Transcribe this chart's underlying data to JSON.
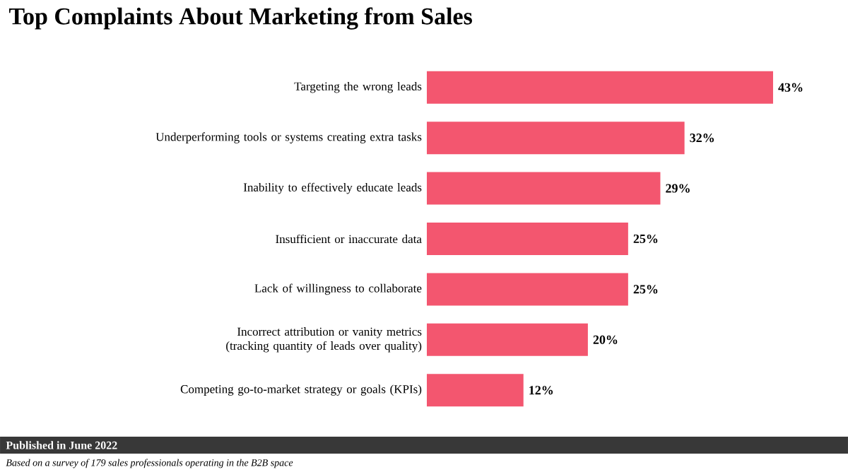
{
  "chart_data": {
    "type": "bar",
    "orientation": "horizontal",
    "title": "Top Complaints About Marketing from Sales",
    "categories": [
      "Targeting the wrong leads",
      "Underperforming tools or systems creating extra tasks",
      "Inability to effectively educate leads",
      "Insufficient or inaccurate data",
      "Lack of willingness to collaborate",
      "Incorrect attribution or vanity metrics (tracking quantity of leads over quality)",
      "Competing go-to-market strategy or goals (KPIs)"
    ],
    "values": [
      43,
      32,
      29,
      25,
      25,
      20,
      12
    ],
    "value_labels": [
      "43%",
      "32%",
      "29%",
      "25%",
      "25%",
      "20%",
      "12%"
    ],
    "color": "#f3566f",
    "annotations": [
      "Published in June 2022",
      "Based on a survey of 179 sales professionals operating in the B2B space"
    ]
  }
}
